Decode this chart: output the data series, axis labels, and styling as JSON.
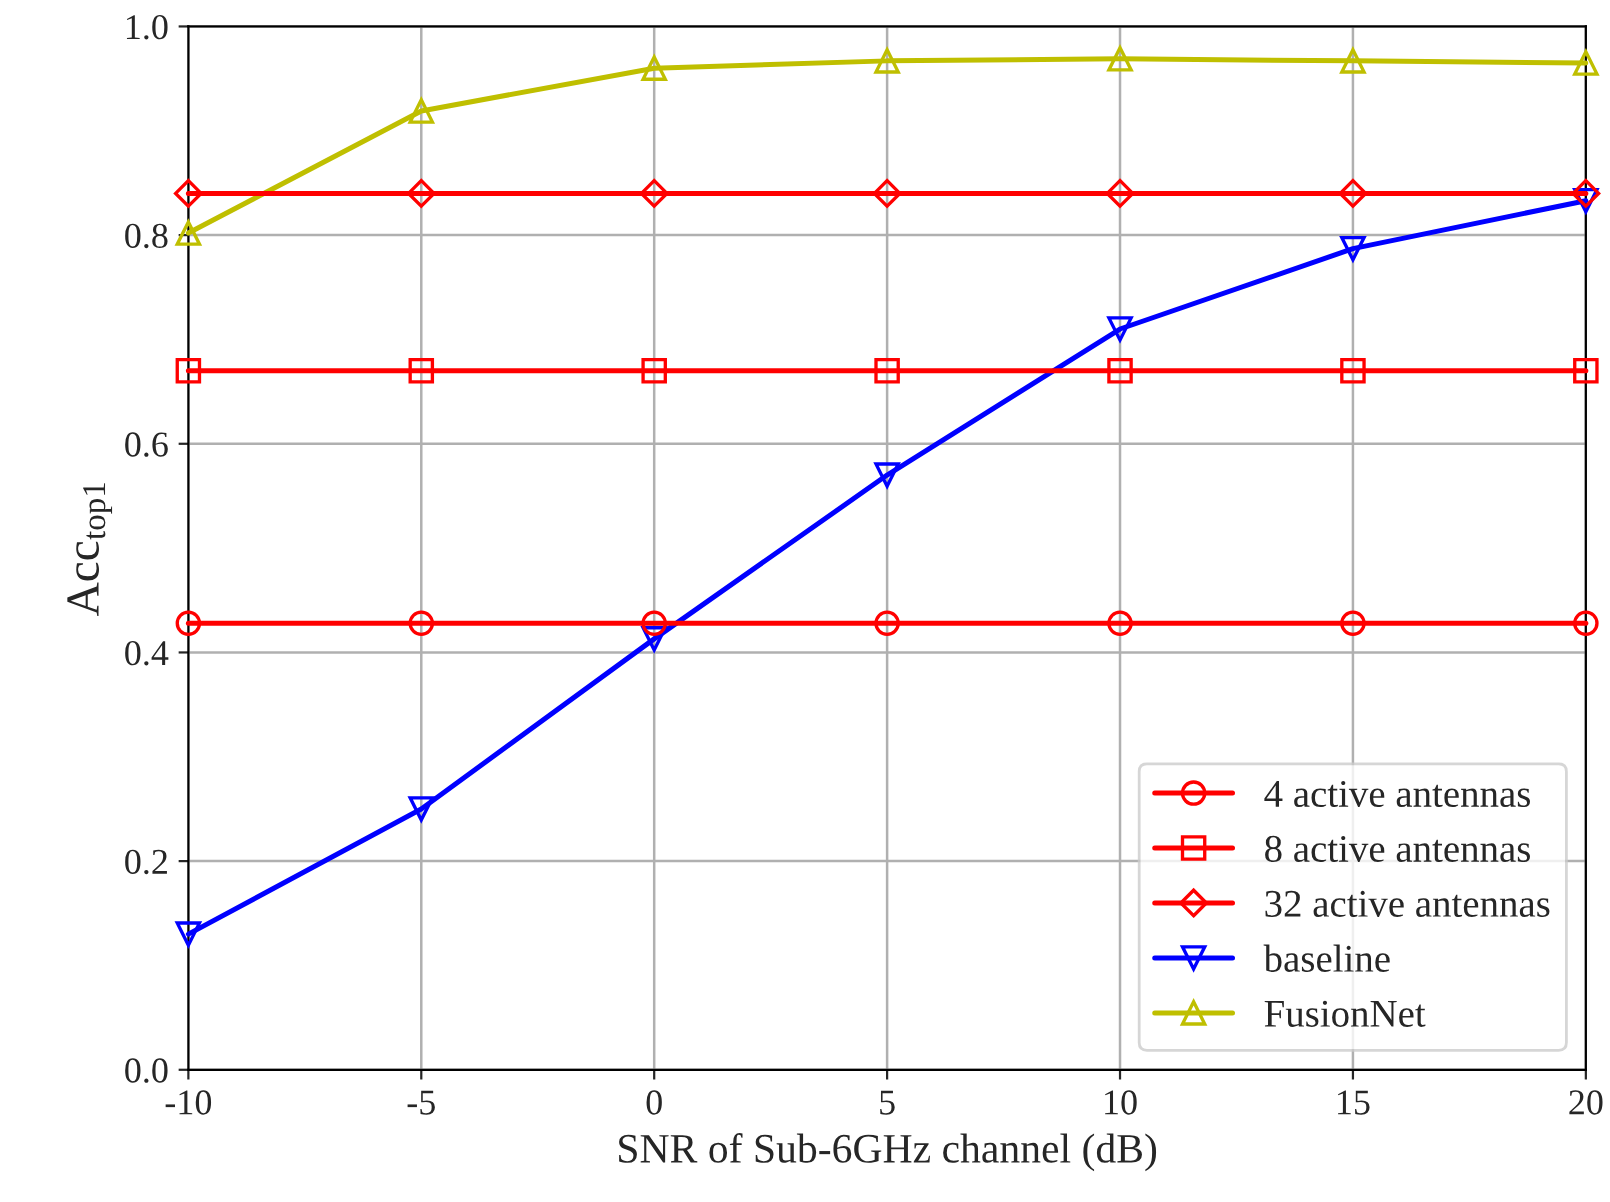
{
  "chart_data": {
    "type": "line",
    "xlabel": "SNR of Sub-6GHz channel (dB)",
    "ylabel": "Acc$_{top1}$",
    "x": [
      -10,
      -5,
      0,
      5,
      10,
      15,
      20
    ],
    "series": [
      {
        "name": "4 active antennas",
        "color": "#ff0000",
        "marker": "circle",
        "values": [
          0.428,
          0.428,
          0.428,
          0.428,
          0.428,
          0.428,
          0.428
        ]
      },
      {
        "name": "8 active antennas",
        "color": "#ff0000",
        "marker": "square",
        "values": [
          0.67,
          0.67,
          0.67,
          0.67,
          0.67,
          0.67,
          0.67
        ]
      },
      {
        "name": "32 active antennas",
        "color": "#ff0000",
        "marker": "diamond",
        "values": [
          0.84,
          0.84,
          0.84,
          0.84,
          0.84,
          0.84,
          0.84
        ]
      },
      {
        "name": "baseline",
        "color": "#0000ff",
        "marker": "triangle_down",
        "values": [
          0.13,
          0.25,
          0.413,
          0.57,
          0.71,
          0.787,
          0.833
        ]
      },
      {
        "name": "FusionNet",
        "color": "#bfbf00",
        "marker": "triangle",
        "values": [
          0.802,
          0.919,
          0.96,
          0.967,
          0.969,
          0.967,
          0.965
        ]
      }
    ],
    "xlim": [
      -10,
      20
    ],
    "xticks": [
      -10,
      -5,
      0,
      5,
      10,
      15,
      20
    ],
    "ylim": [
      0.0,
      1.0
    ],
    "yticks": [
      {
        "value": 0,
        "label": "0.0"
      },
      {
        "value": 0.2,
        "label": "0.2"
      },
      {
        "value": 0.4,
        "label": "0.4"
      },
      {
        "value": 0.6,
        "label": "0.6"
      },
      {
        "value": 0.8,
        "label": "0.8"
      },
      {
        "value": 1.0,
        "label": "1.0"
      }
    ],
    "grid": true,
    "legend": "bottom right",
    "line_style": "solid"
  }
}
